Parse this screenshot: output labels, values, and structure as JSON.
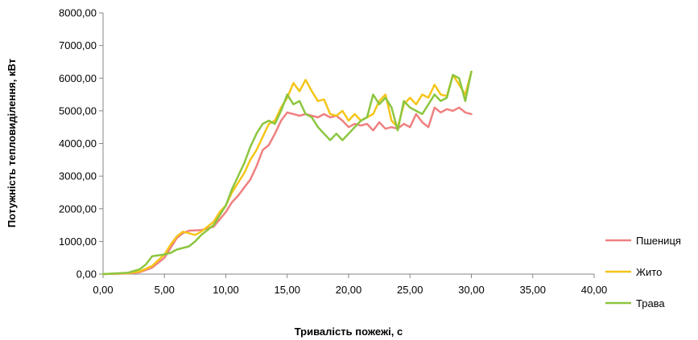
{
  "chart_data": {
    "type": "line",
    "title": "",
    "xlabel": "Тривалість пожежі, с",
    "ylabel": "Потужність тепловиділення, кВт",
    "xlim": [
      0,
      40
    ],
    "ylim": [
      0,
      8000
    ],
    "x_ticks": [
      "0,00",
      "5,00",
      "10,00",
      "15,00",
      "20,00",
      "25,00",
      "30,00",
      "35,00",
      "40,00"
    ],
    "y_ticks": [
      "0,00",
      "1000,00",
      "2000,00",
      "3000,00",
      "4000,00",
      "5000,00",
      "6000,00",
      "7000,00",
      "8000,00"
    ],
    "grid": false,
    "legend": "right",
    "series": [
      {
        "name": "Пшениця",
        "color": "#f08080",
        "points": [
          [
            0,
            0
          ],
          [
            2,
            20
          ],
          [
            3,
            60
          ],
          [
            4,
            200
          ],
          [
            5,
            500
          ],
          [
            5.5,
            800
          ],
          [
            6,
            1100
          ],
          [
            6.5,
            1250
          ],
          [
            7,
            1330
          ],
          [
            8,
            1350
          ],
          [
            9,
            1450
          ],
          [
            10,
            1900
          ],
          [
            10.5,
            2200
          ],
          [
            11,
            2400
          ],
          [
            11.5,
            2650
          ],
          [
            12,
            2900
          ],
          [
            12.5,
            3300
          ],
          [
            13,
            3800
          ],
          [
            13.5,
            3950
          ],
          [
            14,
            4300
          ],
          [
            14.5,
            4700
          ],
          [
            15,
            4950
          ],
          [
            15.5,
            4900
          ],
          [
            16,
            4850
          ],
          [
            16.5,
            4900
          ],
          [
            17,
            4850
          ],
          [
            17.5,
            4800
          ],
          [
            18,
            4900
          ],
          [
            18.5,
            4800
          ],
          [
            19,
            4850
          ],
          [
            19.5,
            4700
          ],
          [
            20,
            4500
          ],
          [
            20.5,
            4600
          ],
          [
            21,
            4550
          ],
          [
            21.5,
            4600
          ],
          [
            22,
            4400
          ],
          [
            22.5,
            4650
          ],
          [
            23,
            4450
          ],
          [
            23.5,
            4500
          ],
          [
            24,
            4450
          ],
          [
            24.5,
            4600
          ],
          [
            25,
            4500
          ],
          [
            25.5,
            4900
          ],
          [
            26,
            4650
          ],
          [
            26.5,
            4500
          ],
          [
            27,
            5100
          ],
          [
            27.5,
            4950
          ],
          [
            28,
            5050
          ],
          [
            28.5,
            5000
          ],
          [
            29,
            5100
          ],
          [
            29.5,
            4950
          ],
          [
            30,
            4900
          ]
        ]
      },
      {
        "name": "Жито",
        "color": "#f5c518",
        "points": [
          [
            0,
            0
          ],
          [
            2,
            30
          ],
          [
            3,
            80
          ],
          [
            4,
            250
          ],
          [
            5,
            600
          ],
          [
            5.5,
            900
          ],
          [
            6,
            1150
          ],
          [
            6.5,
            1300
          ],
          [
            7,
            1250
          ],
          [
            7.5,
            1200
          ],
          [
            8,
            1300
          ],
          [
            9,
            1600
          ],
          [
            9.5,
            1900
          ],
          [
            10,
            2100
          ],
          [
            10.5,
            2500
          ],
          [
            11,
            2800
          ],
          [
            11.5,
            3100
          ],
          [
            12,
            3500
          ],
          [
            12.5,
            3800
          ],
          [
            13,
            4200
          ],
          [
            13.5,
            4600
          ],
          [
            14,
            4700
          ],
          [
            14.5,
            5100
          ],
          [
            15,
            5400
          ],
          [
            15.5,
            5850
          ],
          [
            16,
            5600
          ],
          [
            16.5,
            5950
          ],
          [
            17,
            5600
          ],
          [
            17.5,
            5300
          ],
          [
            18,
            5350
          ],
          [
            18.5,
            4900
          ],
          [
            19,
            4850
          ],
          [
            19.5,
            5000
          ],
          [
            20,
            4700
          ],
          [
            20.5,
            4900
          ],
          [
            21,
            4700
          ],
          [
            21.5,
            4800
          ],
          [
            22,
            4900
          ],
          [
            22.5,
            5300
          ],
          [
            23,
            5500
          ],
          [
            23.5,
            4700
          ],
          [
            24,
            4500
          ],
          [
            24.5,
            5200
          ],
          [
            25,
            5400
          ],
          [
            25.5,
            5200
          ],
          [
            26,
            5500
          ],
          [
            26.5,
            5400
          ],
          [
            27,
            5800
          ],
          [
            27.5,
            5500
          ],
          [
            28,
            5450
          ],
          [
            28.5,
            6100
          ],
          [
            29,
            5800
          ],
          [
            29.5,
            5500
          ],
          [
            30,
            6200
          ]
        ]
      },
      {
        "name": "Трава",
        "color": "#8cc63f",
        "points": [
          [
            0,
            0
          ],
          [
            2,
            40
          ],
          [
            3,
            150
          ],
          [
            3.5,
            300
          ],
          [
            4,
            550
          ],
          [
            5,
            600
          ],
          [
            5.5,
            650
          ],
          [
            6,
            750
          ],
          [
            7,
            850
          ],
          [
            7.5,
            1000
          ],
          [
            8,
            1200
          ],
          [
            9,
            1500
          ],
          [
            10,
            2100
          ],
          [
            10.5,
            2600
          ],
          [
            11,
            3000
          ],
          [
            11.5,
            3400
          ],
          [
            12,
            3900
          ],
          [
            12.5,
            4300
          ],
          [
            13,
            4600
          ],
          [
            13.5,
            4700
          ],
          [
            14,
            4600
          ],
          [
            14.5,
            5000
          ],
          [
            15,
            5500
          ],
          [
            15.5,
            5200
          ],
          [
            16,
            5300
          ],
          [
            16.5,
            4900
          ],
          [
            17,
            4800
          ],
          [
            17.5,
            4500
          ],
          [
            18,
            4300
          ],
          [
            18.5,
            4100
          ],
          [
            19,
            4300
          ],
          [
            19.5,
            4100
          ],
          [
            20,
            4300
          ],
          [
            20.5,
            4500
          ],
          [
            21,
            4700
          ],
          [
            21.5,
            4800
          ],
          [
            22,
            5500
          ],
          [
            22.5,
            5200
          ],
          [
            23,
            5400
          ],
          [
            23.5,
            5100
          ],
          [
            24,
            4400
          ],
          [
            24.5,
            5300
          ],
          [
            25,
            5100
          ],
          [
            25.5,
            5000
          ],
          [
            26,
            4900
          ],
          [
            26.5,
            5200
          ],
          [
            27,
            5500
          ],
          [
            27.5,
            5300
          ],
          [
            28,
            5400
          ],
          [
            28.5,
            6100
          ],
          [
            29,
            6000
          ],
          [
            29.5,
            5300
          ],
          [
            30,
            6200
          ]
        ]
      }
    ]
  }
}
